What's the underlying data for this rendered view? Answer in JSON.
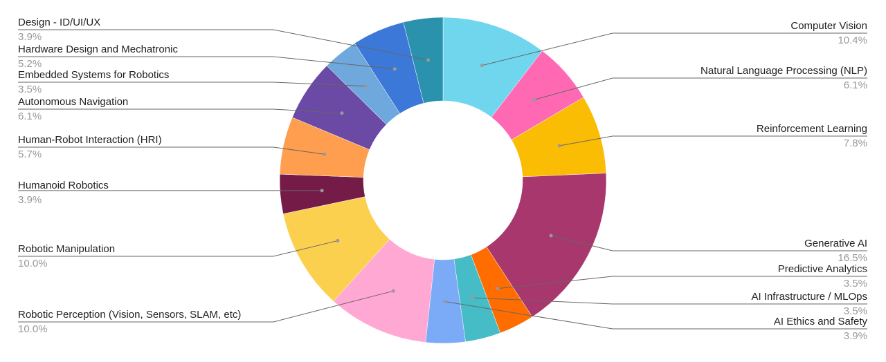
{
  "chart_data": {
    "type": "donut",
    "categories": [
      "Computer Vision",
      "Natural Language Processing (NLP)",
      "Reinforcement Learning",
      "Generative AI",
      "Predictive Analytics",
      "AI Infrastructure / MLOps",
      "AI Ethics and Safety",
      "Robotic Perception (Vision, Sensors, SLAM, etc)",
      "Robotic Manipulation",
      "Humanoid Robotics",
      "Human-Robot Interaction (HRI)",
      "Autonomous Navigation",
      "Embedded Systems for Robotics",
      "Hardware Design and Mechatronic",
      "Design - ID/UI/UX"
    ],
    "values": [
      10.4,
      6.1,
      7.8,
      16.5,
      3.5,
      3.5,
      3.9,
      10.0,
      10.0,
      3.9,
      5.7,
      6.1,
      3.5,
      5.2,
      3.9
    ],
    "value_labels": [
      "10.4%",
      "6.1%",
      "7.8%",
      "16.5%",
      "3.5%",
      "3.5%",
      "3.9%",
      "10.0%",
      "10.0%",
      "3.9%",
      "5.7%",
      "6.1%",
      "3.5%",
      "5.2%",
      "3.9%"
    ],
    "colors": [
      "#6fd6ee",
      "#ff69b4",
      "#fbbc04",
      "#a8376e",
      "#ff6d01",
      "#46bdc6",
      "#7baaf7",
      "#ffa8d4",
      "#fcd04f",
      "#741b47",
      "#ff9e4f",
      "#6a4aa5",
      "#6fa8dc",
      "#3c78d8",
      "#2a92ad"
    ]
  }
}
